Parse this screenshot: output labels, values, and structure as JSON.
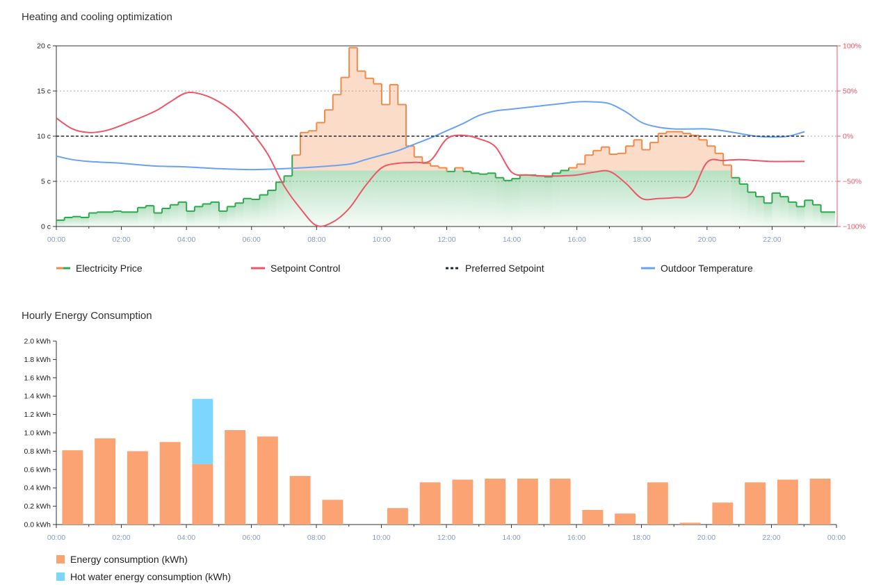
{
  "titles": {
    "top": "Heating and cooling optimization",
    "bottom": "Hourly Energy Consumption"
  },
  "colors": {
    "price_high": "#f08a4b",
    "price_low": "#2fa84f",
    "setpoint": "#ee5566",
    "preferred": "#1f2a3a",
    "outdoor": "#6aa2f2",
    "energy": "#fca374",
    "hot_water": "#7dd6fd",
    "axis_tick": "#8a9bc0",
    "right_axis": "#ee5566"
  },
  "chart_data": [
    {
      "type": "line",
      "title": "Heating and cooling optimization",
      "x_ticks": [
        "00:00",
        "02:00",
        "04:00",
        "06:00",
        "08:00",
        "10:00",
        "12:00",
        "14:00",
        "16:00",
        "18:00",
        "20:00",
        "22:00"
      ],
      "y_left_ticks": [
        "0 c",
        "5 c",
        "10 c",
        "15 c",
        "20 c"
      ],
      "y_right_ticks": [
        "−100%",
        "−50%",
        "0%",
        "50%",
        "100%"
      ],
      "ylim_left": [
        0,
        20
      ],
      "ylim_right": [
        -100,
        100
      ],
      "grid": "dashed horizontal",
      "legend": [
        {
          "key": "price",
          "label": "Electricity Price"
        },
        {
          "key": "setpoint",
          "label": "Setpoint Control"
        },
        {
          "key": "preferred",
          "label": "Preferred Setpoint"
        },
        {
          "key": "outdoor",
          "label": "Outdoor Temperature"
        }
      ],
      "legend_placement": "bottom",
      "price_threshold": 6.2,
      "series": [
        {
          "name": "Electricity Price",
          "step": true,
          "x_hours": [
            0.0,
            0.25,
            0.5,
            0.75,
            1.0,
            1.25,
            1.5,
            1.75,
            2.0,
            2.25,
            2.5,
            2.75,
            3.0,
            3.25,
            3.5,
            3.75,
            4.0,
            4.25,
            4.5,
            4.75,
            5.0,
            5.25,
            5.5,
            5.75,
            6.0,
            6.25,
            6.5,
            6.75,
            7.0,
            7.25,
            7.5,
            7.75,
            8.0,
            8.25,
            8.5,
            8.75,
            9.0,
            9.25,
            9.5,
            9.75,
            10.0,
            10.25,
            10.5,
            10.75,
            11.0,
            11.25,
            11.5,
            11.75,
            12.0,
            12.25,
            12.5,
            12.75,
            13.0,
            13.25,
            13.5,
            13.75,
            14.0,
            14.25,
            14.5,
            14.75,
            15.0,
            15.25,
            15.5,
            15.75,
            16.0,
            16.25,
            16.5,
            16.75,
            17.0,
            17.25,
            17.5,
            17.75,
            18.0,
            18.25,
            18.5,
            18.75,
            19.0,
            19.25,
            19.5,
            19.75,
            20.0,
            20.25,
            20.5,
            20.75,
            21.0,
            21.25,
            21.5,
            21.75,
            22.0,
            22.25,
            22.5,
            22.75,
            23.0,
            23.25,
            23.5,
            23.75
          ],
          "values": [
            0.7,
            1.0,
            1.1,
            1.0,
            1.5,
            1.6,
            1.6,
            1.7,
            1.6,
            1.6,
            2.1,
            2.3,
            1.5,
            2.0,
            2.4,
            2.7,
            1.7,
            2.2,
            2.5,
            2.7,
            1.7,
            2.2,
            2.6,
            3.1,
            3.0,
            3.5,
            4.0,
            4.9,
            5.6,
            7.9,
            10.4,
            10.6,
            11.5,
            12.9,
            14.6,
            16.5,
            19.8,
            17.2,
            16.4,
            15.8,
            13.5,
            15.7,
            13.5,
            8.9,
            7.7,
            7.0,
            6.7,
            6.5,
            6.1,
            6.5,
            6.1,
            5.9,
            5.8,
            5.9,
            5.4,
            5.1,
            5.3,
            5.7,
            5.7,
            5.6,
            5.5,
            5.9,
            6.2,
            6.5,
            6.9,
            7.9,
            8.4,
            8.8,
            8.0,
            8.1,
            8.9,
            9.6,
            8.5,
            9.3,
            10.3,
            10.5,
            10.5,
            10.3,
            10.1,
            9.6,
            8.9,
            8.1,
            6.8,
            5.4,
            4.7,
            3.8,
            3.3,
            2.6,
            3.7,
            3.3,
            2.7,
            2.2,
            2.9,
            2.4,
            1.6,
            1.6
          ]
        },
        {
          "name": "Setpoint Control",
          "axis": "right",
          "x_hours": [
            0,
            0.5,
            1,
            1.5,
            2,
            3,
            3.5,
            4,
            4.5,
            5,
            5.5,
            6,
            6.5,
            7,
            7.5,
            8,
            8.5,
            9,
            9.5,
            10,
            10.5,
            11,
            11.5,
            12,
            12.5,
            13,
            13.5,
            14,
            14.5,
            15,
            15.5,
            16,
            16.5,
            17,
            17.5,
            18,
            18.5,
            19,
            19.5,
            20,
            20.5,
            21,
            21.5,
            22,
            22.5,
            23
          ],
          "values": [
            20,
            8,
            4,
            6,
            12,
            27,
            38,
            48,
            46,
            38,
            25,
            5,
            -20,
            -55,
            -80,
            -99,
            -95,
            -80,
            -55,
            -35,
            -30,
            -29,
            -27,
            -3,
            1,
            -3,
            -12,
            -40,
            -43,
            -44,
            -44,
            -43,
            -40,
            -39,
            -52,
            -69,
            -69,
            -68,
            -64,
            -29,
            -27,
            -26,
            -27,
            -28,
            -28,
            -28
          ]
        },
        {
          "name": "Preferred Setpoint",
          "axis": "left",
          "x_hours": [
            0,
            23
          ],
          "values": [
            10,
            10
          ]
        },
        {
          "name": "Outdoor Temperature",
          "axis": "left",
          "x_hours": [
            0,
            0.5,
            1,
            1.5,
            2,
            3,
            4,
            5,
            6,
            7,
            8,
            9,
            9.5,
            10,
            10.5,
            11,
            11.5,
            12,
            12.5,
            13,
            13.5,
            14,
            14.5,
            15,
            15.5,
            16,
            16.5,
            17,
            17.5,
            18,
            18.5,
            19,
            19.5,
            20,
            20.5,
            21,
            21.5,
            22,
            22.5,
            23
          ],
          "values": [
            7.8,
            7.4,
            7.2,
            7.1,
            7.0,
            6.7,
            6.6,
            6.4,
            6.3,
            6.4,
            6.6,
            6.9,
            7.4,
            7.9,
            8.4,
            9.1,
            9.8,
            10.6,
            11.4,
            12.3,
            12.8,
            13.0,
            13.2,
            13.4,
            13.6,
            13.8,
            13.8,
            13.6,
            12.7,
            11.5,
            11.0,
            10.8,
            10.8,
            10.8,
            10.6,
            10.3,
            10.0,
            9.9,
            10.0,
            10.5
          ]
        }
      ]
    },
    {
      "type": "bar",
      "title": "Hourly Energy Consumption",
      "stacked": true,
      "x_ticks": [
        "00:00",
        "02:00",
        "04:00",
        "06:00",
        "08:00",
        "10:00",
        "12:00",
        "14:00",
        "16:00",
        "18:00",
        "20:00",
        "22:00",
        "00:00"
      ],
      "y_ticks": [
        "0.0 kWh",
        "0.2 kWh",
        "0.4 kWh",
        "0.6 kWh",
        "0.8 kWh",
        "1.0 kWh",
        "1.2 kWh",
        "1.4 kWh",
        "1.6 kWh",
        "1.8 kWh",
        "2.0 kWh"
      ],
      "ylim": [
        0,
        2.0
      ],
      "categories": [
        "00:00",
        "01:00",
        "02:00",
        "03:00",
        "04:00",
        "05:00",
        "06:00",
        "07:00",
        "08:00",
        "09:00",
        "10:00",
        "11:00",
        "12:00",
        "13:00",
        "14:00",
        "15:00",
        "16:00",
        "17:00",
        "18:00",
        "19:00",
        "20:00",
        "21:00",
        "22:00",
        "23:00"
      ],
      "series": [
        {
          "name": "Energy consumption (kWh)",
          "values": [
            0.81,
            0.94,
            0.8,
            0.9,
            0.66,
            1.03,
            0.96,
            0.53,
            0.27,
            0.0,
            0.18,
            0.46,
            0.49,
            0.5,
            0.5,
            0.5,
            0.16,
            0.12,
            0.46,
            0.02,
            0.24,
            0.46,
            0.49,
            0.5
          ]
        },
        {
          "name": "Hot water energy consumption (kWh)",
          "values": [
            0,
            0,
            0,
            0,
            0.71,
            0,
            0,
            0,
            0,
            0,
            0,
            0,
            0,
            0,
            0,
            0,
            0,
            0,
            0,
            0,
            0,
            0,
            0,
            0
          ]
        }
      ],
      "legend_placement": "bottom-left"
    }
  ]
}
